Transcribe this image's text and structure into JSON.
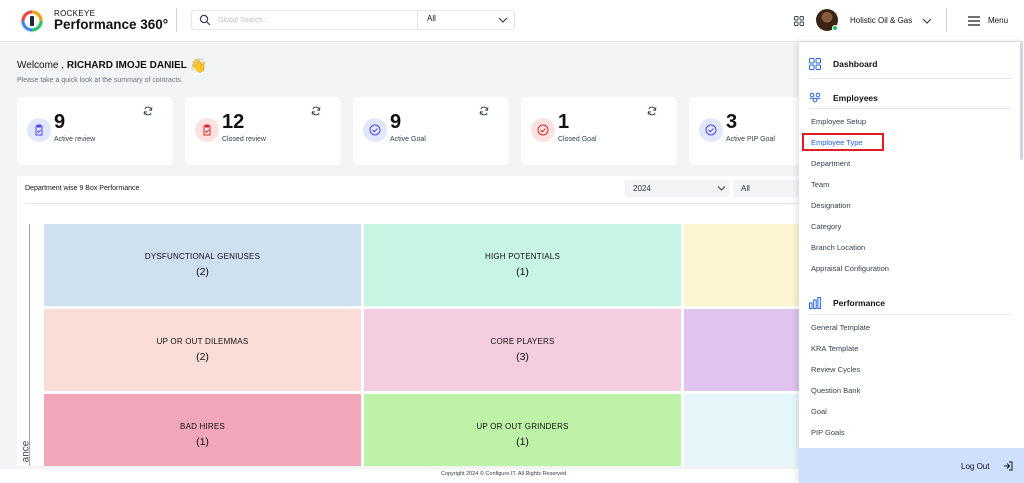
{
  "header": {
    "brand_top": "ROCKEYE",
    "brand_main": "Performance 360°",
    "search": {
      "placeholder": "Global Search...",
      "scope": "All"
    },
    "company": "Holistic Oil & Gas",
    "menu_label": "Menu"
  },
  "welcome": {
    "prefix": "Welcome ,",
    "name": "RICHARD IMOJE DANIEL",
    "emoji": "👋",
    "subtitle": "Please take a quick look at the summary of contracts."
  },
  "stats": [
    {
      "value": "9",
      "label": "Active review",
      "icon": "clipboard-icon",
      "tint": "#e0e7ff",
      "color": "#4f46e5"
    },
    {
      "value": "12",
      "label": "Closed review",
      "icon": "clipboard-icon",
      "tint": "#fee2e2",
      "color": "#dc2626"
    },
    {
      "value": "9",
      "label": "Active Goal",
      "icon": "check-circle-icon",
      "tint": "#e0e7ff",
      "color": "#4f46e5"
    },
    {
      "value": "1",
      "label": "Closed Goal",
      "icon": "check-circle-icon",
      "tint": "#fee2e2",
      "color": "#dc2626"
    },
    {
      "value": "3",
      "label": "Active PIP Goal",
      "icon": "check-circle-icon",
      "tint": "#e0e7ff",
      "color": "#4f46e5"
    }
  ],
  "panel": {
    "title": "Department wise 9 Box Performance",
    "year": "2024",
    "filter": "All",
    "y_axis_label": "ance"
  },
  "nine_box": [
    {
      "name": "DYSFUNCTIONAL GENIUSES",
      "count": "(2)",
      "color": "#cfe0f1"
    },
    {
      "name": "HIGH POTENTIALS",
      "count": "(1)",
      "color": "#c8f5e3"
    },
    {
      "name": "",
      "count": "",
      "color": "#fbf6cf"
    },
    {
      "name": "UP OR OUT DILEMMAS",
      "count": "(2)",
      "color": "#f9ddd6"
    },
    {
      "name": "CORE PLAYERS",
      "count": "(3)",
      "color": "#f5cde0"
    },
    {
      "name": "",
      "count": "",
      "color": "#e0c4f0"
    },
    {
      "name": "BAD HIRES",
      "count": "(1)",
      "color": "#f2a6b9"
    },
    {
      "name": "UP OR OUT GRINDERS",
      "count": "(1)",
      "color": "#bdf2a8"
    },
    {
      "name": "",
      "count": "",
      "color": "#e6f7fb"
    }
  ],
  "footer": "Copyright 2024 © Configure.IT. All Rights Reserved",
  "drawer": {
    "dashboard": "Dashboard",
    "employees": {
      "label": "Employees",
      "items": [
        "Employee Setup",
        "Employee Type",
        "Department",
        "Team",
        "Designation",
        "Category",
        "Branch Location",
        "Appraisal Configuration"
      ]
    },
    "performance": {
      "label": "Performance",
      "items": [
        "General Template",
        "KRA Template",
        "Review Cycles",
        "Question Bank",
        "Goal",
        "PIP Goals"
      ]
    },
    "logout": "Log Out"
  }
}
